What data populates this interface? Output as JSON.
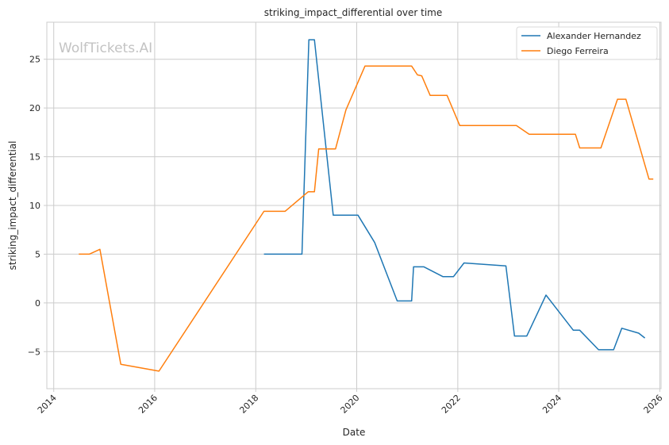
{
  "watermark": "WolfTickets.AI",
  "chart_data": {
    "type": "line",
    "title": "striking_impact_differential over time",
    "xlabel": "Date",
    "ylabel": "striking_impact_differential",
    "xlim": [
      "2013-11-12",
      "2026-01-10"
    ],
    "ylim": [
      -8.8,
      28.8
    ],
    "x_ticks": [
      "2014",
      "2016",
      "2018",
      "2020",
      "2022",
      "2024",
      "2026"
    ],
    "y_ticks": [
      -5,
      0,
      5,
      10,
      15,
      20,
      25
    ],
    "grid": true,
    "legend_position": "top-right",
    "colors": {
      "Alexander Hernandez": "#1f77b4",
      "Diego Ferreira": "#ff7f0e"
    },
    "series": [
      {
        "name": "Alexander Hernandez",
        "points": [
          [
            "2018-03-01",
            5.0
          ],
          [
            "2018-12-01",
            5.0
          ],
          [
            "2019-01-20",
            27.0
          ],
          [
            "2019-03-01",
            27.0
          ],
          [
            "2019-07-15",
            9.0
          ],
          [
            "2020-01-10",
            9.0
          ],
          [
            "2020-05-10",
            6.2
          ],
          [
            "2020-10-20",
            0.2
          ],
          [
            "2021-02-01",
            0.2
          ],
          [
            "2021-02-15",
            3.7
          ],
          [
            "2021-05-01",
            3.7
          ],
          [
            "2021-09-15",
            2.7
          ],
          [
            "2021-12-01",
            2.7
          ],
          [
            "2022-02-15",
            4.1
          ],
          [
            "2022-12-15",
            3.8
          ],
          [
            "2023-02-15",
            -3.4
          ],
          [
            "2023-05-15",
            -3.4
          ],
          [
            "2023-10-01",
            0.8
          ],
          [
            "2024-04-15",
            -2.8
          ],
          [
            "2024-06-01",
            -2.8
          ],
          [
            "2024-10-15",
            -4.8
          ],
          [
            "2025-02-01",
            -4.8
          ],
          [
            "2025-04-01",
            -2.6
          ],
          [
            "2025-08-01",
            -3.1
          ],
          [
            "2025-09-15",
            -3.6
          ]
        ]
      },
      {
        "name": "Diego Ferreira",
        "points": [
          [
            "2014-07-01",
            5.0
          ],
          [
            "2014-09-15",
            5.0
          ],
          [
            "2014-12-01",
            5.5
          ],
          [
            "2015-05-01",
            -6.3
          ],
          [
            "2016-02-01",
            -7.0
          ],
          [
            "2018-03-01",
            9.4
          ],
          [
            "2018-08-01",
            9.4
          ],
          [
            "2019-01-15",
            11.4
          ],
          [
            "2019-03-01",
            11.4
          ],
          [
            "2019-04-01",
            15.8
          ],
          [
            "2019-08-01",
            15.8
          ],
          [
            "2019-10-15",
            19.8
          ],
          [
            "2020-03-01",
            24.3
          ],
          [
            "2021-02-01",
            24.3
          ],
          [
            "2021-03-15",
            23.4
          ],
          [
            "2021-04-15",
            23.3
          ],
          [
            "2021-06-15",
            21.3
          ],
          [
            "2021-10-15",
            21.3
          ],
          [
            "2022-01-15",
            18.2
          ],
          [
            "2023-03-01",
            18.2
          ],
          [
            "2023-06-01",
            17.3
          ],
          [
            "2024-05-01",
            17.3
          ],
          [
            "2024-06-01",
            15.9
          ],
          [
            "2024-11-01",
            15.9
          ],
          [
            "2025-03-01",
            20.9
          ],
          [
            "2025-05-01",
            20.9
          ],
          [
            "2025-10-15",
            12.7
          ],
          [
            "2025-11-15",
            12.7
          ]
        ]
      }
    ]
  }
}
